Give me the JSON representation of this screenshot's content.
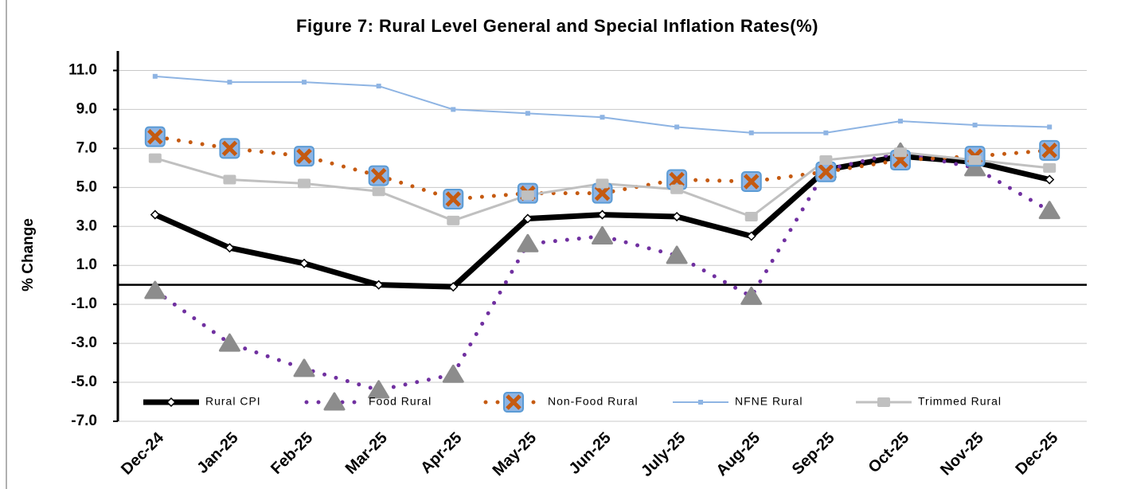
{
  "chart_data": {
    "type": "line",
    "title": "Figure 7: Rural Level General and Special Inflation Rates(%)",
    "y_label": "% Change",
    "categories": [
      "Dec-24",
      "Jan-25",
      "Feb-25",
      "Mar-25",
      "Apr-25",
      "May-25",
      "Jun-25",
      "July-25",
      "Aug-25",
      "Sep-25",
      "Oct-25",
      "Nov-25",
      "Dec-25"
    ],
    "ylim": [
      -7,
      12
    ],
    "yticks": [
      {
        "value": -7,
        "label": "-7.0"
      },
      {
        "value": -5,
        "label": "-5.0"
      },
      {
        "value": -3,
        "label": "-3.0"
      },
      {
        "value": -1,
        "label": "-1.0"
      },
      {
        "value": 1,
        "label": "1.0"
      },
      {
        "value": 3,
        "label": "3.0"
      },
      {
        "value": 5,
        "label": "5.0"
      },
      {
        "value": 7,
        "label": "7.0"
      },
      {
        "value": 9,
        "label": "9.0"
      },
      {
        "value": 11,
        "label": "11.0"
      }
    ],
    "grid": true,
    "legend": "bottom",
    "series": [
      {
        "name": "Rural CPI",
        "color": "#000000",
        "line_style": "solid",
        "width": 7,
        "marker": "diamond",
        "values": [
          3.6,
          1.9,
          1.1,
          0.0,
          -0.1,
          3.4,
          3.6,
          3.5,
          2.5,
          5.9,
          6.6,
          6.3,
          5.4
        ]
      },
      {
        "name": "Food Rural",
        "color": "#7030a0",
        "line_style": "dotted",
        "width": 5,
        "marker": "triangle",
        "values": [
          -0.3,
          -3.0,
          -4.3,
          -5.4,
          -4.6,
          2.1,
          2.5,
          1.5,
          -0.6,
          5.9,
          6.8,
          6.0,
          3.8
        ]
      },
      {
        "name": "Non-Food Rural",
        "color": "#c55a11",
        "line_style": "dotted",
        "width": 5,
        "marker": "xsquare",
        "values": [
          7.6,
          7.0,
          6.6,
          5.6,
          4.4,
          4.7,
          4.7,
          5.4,
          5.3,
          5.8,
          6.4,
          6.6,
          6.9
        ]
      },
      {
        "name": "NFNE Rural",
        "color": "#8eb4e3",
        "line_style": "solid",
        "width": 2,
        "marker": "smallsquare",
        "values": [
          10.7,
          10.4,
          10.4,
          10.2,
          9.0,
          8.8,
          8.6,
          8.1,
          7.8,
          7.8,
          8.4,
          8.2,
          8.1
        ]
      },
      {
        "name": "Trimmed Rural",
        "color": "#c0c0c0",
        "line_style": "solid",
        "width": 3,
        "marker": "square",
        "values": [
          6.5,
          5.4,
          5.2,
          4.8,
          3.3,
          4.6,
          5.2,
          4.9,
          3.5,
          6.4,
          6.8,
          6.4,
          6.0
        ]
      }
    ]
  }
}
